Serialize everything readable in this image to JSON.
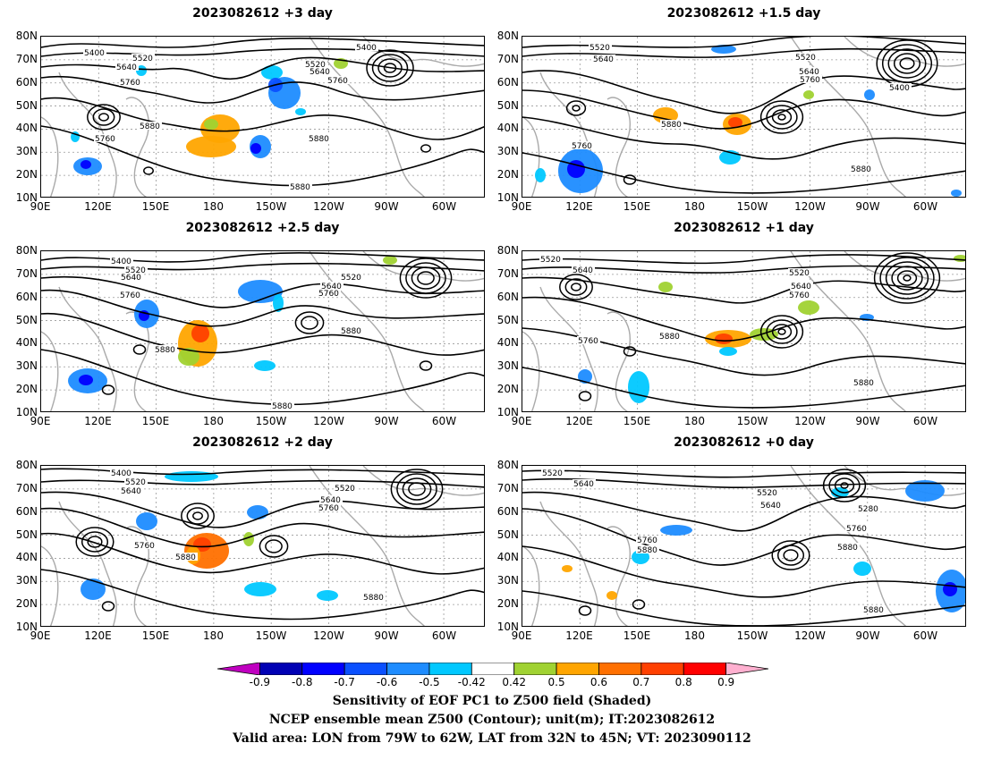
{
  "panels": [
    {
      "title": "2023082612 +3 day",
      "contours": [
        "5400",
        "5520",
        "5640",
        "5760",
        "5880",
        "5760",
        "5880",
        "5400",
        "5520",
        "5640",
        "5760",
        "5880"
      ]
    },
    {
      "title": "2023082612 +1.5 day",
      "contours": [
        "5520",
        "5640",
        "5520",
        "5640",
        "5760",
        "5400",
        "5880",
        "5760",
        "5880"
      ]
    },
    {
      "title": "2023082612 +2.5 day",
      "contours": [
        "5400",
        "5520",
        "5640",
        "5760",
        "5520",
        "5640",
        "5760",
        "5880",
        "5880",
        "5880"
      ]
    },
    {
      "title": "2023082612 +1 day",
      "contours": [
        "5520",
        "5640",
        "5520",
        "5640",
        "5760",
        "5880",
        "5760",
        "5880"
      ]
    },
    {
      "title": "2023082612 +2 day",
      "contours": [
        "5400",
        "5520",
        "5640",
        "5520",
        "5640",
        "5760",
        "5760",
        "5880",
        "5880"
      ]
    },
    {
      "title": "2023082612 +0 day",
      "contours": [
        "5520",
        "5640",
        "5520",
        "5640",
        "5280",
        "5760",
        "5880",
        "5760",
        "5880",
        "5880"
      ]
    }
  ],
  "lat_labels": [
    "80N",
    "70N",
    "60N",
    "50N",
    "40N",
    "30N",
    "20N",
    "10N"
  ],
  "lon_labels": [
    "90E",
    "120E",
    "150E",
    "180",
    "150W",
    "120W",
    "90W",
    "60W"
  ],
  "colorbar": {
    "ticks": [
      "-0.9",
      "-0.8",
      "-0.7",
      "-0.6",
      "-0.5",
      "-0.42",
      "0.42",
      "0.5",
      "0.6",
      "0.7",
      "0.8",
      "0.9"
    ],
    "colors": [
      "#c000c0",
      "#0000b4",
      "#0000ff",
      "#0a50ff",
      "#1e8cff",
      "#00c8ff",
      "#ffffff",
      "#a0d232",
      "#ffa500",
      "#ff7000",
      "#ff4000",
      "#ff0000",
      "#ffb0d0"
    ]
  },
  "caption": {
    "line1": "Sensitivity of EOF PC1 to Z500 field (Shaded)",
    "line2": "NCEP ensemble mean Z500 (Contour); unit(m); IT:2023082612",
    "line3": "Valid area: LON from 79W to 62W, LAT from 32N to 45N; VT: 2023090112"
  }
}
